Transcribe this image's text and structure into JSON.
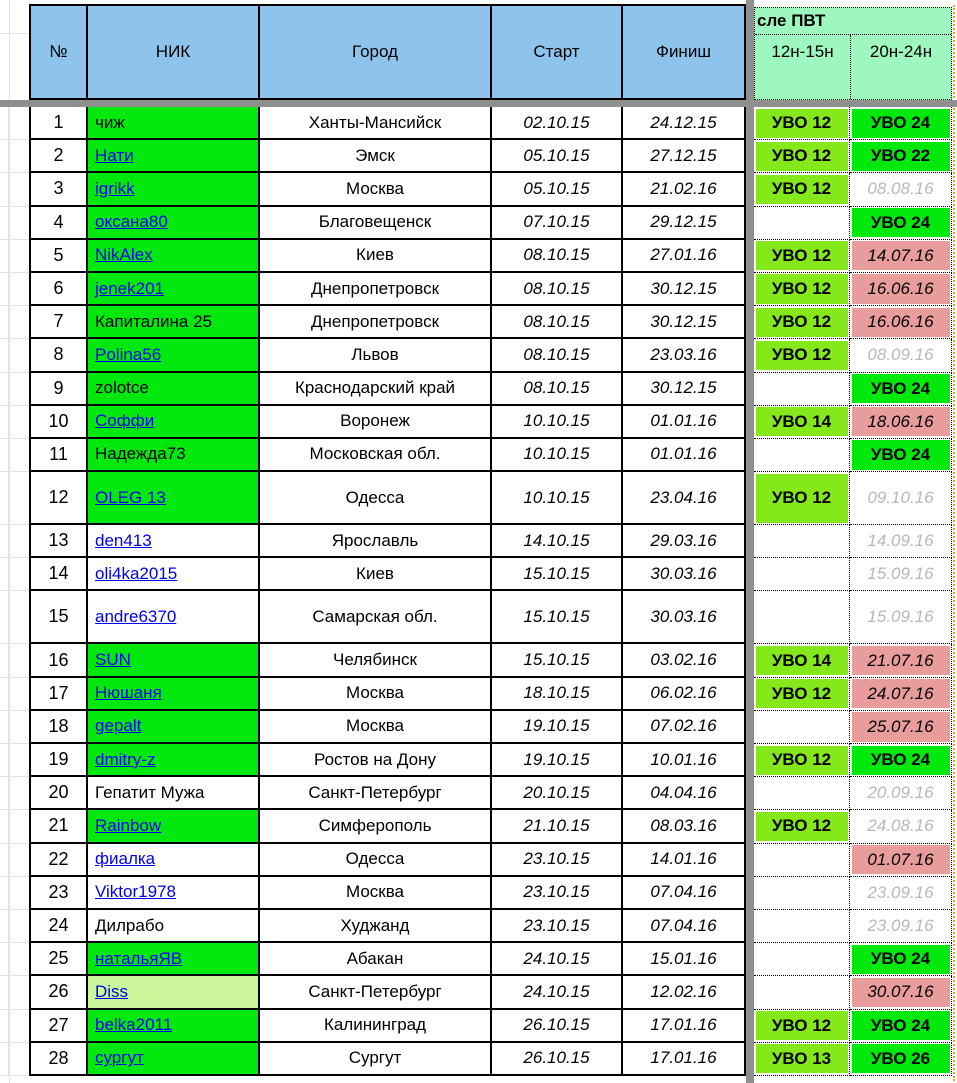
{
  "header": {
    "columns": [
      "№",
      "НИК",
      "Город",
      "Старт",
      "Финиш"
    ],
    "pvt_group_label": "сле ПВТ",
    "sub_columns": [
      "12н-15н",
      "20н-24н"
    ]
  },
  "colors": {
    "header_blue": "#8EC3EC",
    "group_mint": "#9DF7BE",
    "nick_green": "#00E80C",
    "uvo_green": "#00E80C",
    "uvo_yellow_green": "#85E81A",
    "nick_pale_green": "#CCF69B",
    "overdue_pink": "#E89C9C",
    "future_gray_text": "#B8B8B8",
    "link_blue": "#0000EE",
    "pane_divider_gray": "#8F8F8F",
    "print_area_edge_orange": "#DFA81E"
  },
  "rows": [
    {
      "num": "1",
      "nick": "чиж",
      "link": false,
      "nick_bg": "green",
      "city": "Ханты-Мансийск",
      "start": "02.10.15",
      "finish": "24.12.15",
      "col1": {
        "text": "УВО 12",
        "type": "uvo-yg"
      },
      "col2": {
        "text": "УВО 24",
        "type": "uvo-green"
      }
    },
    {
      "num": "2",
      "nick": "Нати",
      "link": true,
      "nick_bg": "green",
      "city": "Эмск",
      "start": "05.10.15",
      "finish": "27.12.15",
      "col1": {
        "text": "УВО 12",
        "type": "uvo-yg"
      },
      "col2": {
        "text": "УВО 22",
        "type": "uvo-green"
      }
    },
    {
      "num": "3",
      "nick": "igrikk",
      "link": true,
      "nick_bg": "green",
      "city": "Москва",
      "start": "05.10.15",
      "finish": "21.02.16",
      "col1": {
        "text": "УВО 12",
        "type": "uvo-yg"
      },
      "col2": {
        "text": "08.08.16",
        "type": "date-gray"
      }
    },
    {
      "num": "4",
      "nick": "оксана80",
      "link": true,
      "nick_bg": "green",
      "city": "Благовещенск",
      "start": "07.10.15",
      "finish": "29.12.15",
      "col1": {
        "text": "",
        "type": "empty"
      },
      "col2": {
        "text": "УВО 24",
        "type": "uvo-green"
      }
    },
    {
      "num": "5",
      "nick": "NikAlex",
      "link": true,
      "nick_bg": "green",
      "city": "Киев",
      "start": "08.10.15",
      "finish": "27.01.16",
      "col1": {
        "text": "УВО 12",
        "type": "uvo-yg"
      },
      "col2": {
        "text": "14.07.16",
        "type": "date-pink"
      }
    },
    {
      "num": "6",
      "nick": "jenek201",
      "link": true,
      "nick_bg": "green",
      "city": "Днепропетровск",
      "start": "08.10.15",
      "finish": "30.12.15",
      "col1": {
        "text": "УВО 12",
        "type": "uvo-yg"
      },
      "col2": {
        "text": "16.06.16",
        "type": "date-pink"
      }
    },
    {
      "num": "7",
      "nick": "Капиталина 25",
      "link": false,
      "nick_bg": "green",
      "city": "Днепропетровск",
      "start": "08.10.15",
      "finish": "30.12.15",
      "col1": {
        "text": "УВО 12",
        "type": "uvo-yg"
      },
      "col2": {
        "text": "16.06.16",
        "type": "date-pink"
      }
    },
    {
      "num": "8",
      "nick": "Polina56",
      "link": true,
      "nick_bg": "green",
      "city": "Львов",
      "start": "08.10.15",
      "finish": "23.03.16",
      "col1": {
        "text": "УВО 12",
        "type": "uvo-yg"
      },
      "col2": {
        "text": "08.09.16",
        "type": "date-gray"
      }
    },
    {
      "num": "9",
      "nick": "zolotce",
      "link": false,
      "nick_bg": "green",
      "city": "Краснодарский край",
      "start": "08.10.15",
      "finish": "30.12.15",
      "col1": {
        "text": "",
        "type": "empty"
      },
      "col2": {
        "text": "УВО 24",
        "type": "uvo-green"
      }
    },
    {
      "num": "10",
      "nick": "Соффи",
      "link": true,
      "nick_bg": "green",
      "city": "Воронеж",
      "start": "10.10.15",
      "finish": "01.01.16",
      "col1": {
        "text": "УВО 14",
        "type": "uvo-yg"
      },
      "col2": {
        "text": "18.06.16",
        "type": "date-pink"
      }
    },
    {
      "num": "11",
      "nick": "Надежда73",
      "link": false,
      "nick_bg": "green",
      "city": "Московская обл.",
      "start": "10.10.15",
      "finish": "01.01.16",
      "col1": {
        "text": "",
        "type": "empty"
      },
      "col2": {
        "text": "УВО 24",
        "type": "uvo-green"
      }
    },
    {
      "num": "12",
      "nick": "OLEG 13",
      "link": true,
      "nick_bg": "green",
      "city": "Одесса",
      "start": "10.10.15",
      "finish": "23.04.16",
      "col1": {
        "text": "УВО 12",
        "type": "uvo-yg"
      },
      "col2": {
        "text": "09.10.16",
        "type": "date-gray"
      },
      "tall": true
    },
    {
      "num": "13",
      "nick": "den413",
      "link": true,
      "nick_bg": "white",
      "city": "Ярославль",
      "start": "14.10.15",
      "finish": "29.03.16",
      "col1": {
        "text": "",
        "type": "empty"
      },
      "col2": {
        "text": "14.09.16",
        "type": "date-gray"
      }
    },
    {
      "num": "14",
      "nick": "oli4ka2015",
      "link": true,
      "nick_bg": "white",
      "city": "Киев",
      "start": "15.10.15",
      "finish": "30.03.16",
      "col1": {
        "text": "",
        "type": "empty"
      },
      "col2": {
        "text": "15.09.16",
        "type": "date-gray"
      }
    },
    {
      "num": "15",
      "nick": "andre6370",
      "link": true,
      "nick_bg": "white",
      "city": "Самарская обл.",
      "start": "15.10.15",
      "finish": "30.03.16",
      "col1": {
        "text": "",
        "type": "empty"
      },
      "col2": {
        "text": "15.09.16",
        "type": "date-gray"
      },
      "tall": true
    },
    {
      "num": "16",
      "nick": "SUN",
      "link": true,
      "nick_bg": "green",
      "city": "Челябинск",
      "start": "15.10.15",
      "finish": "03.02.16",
      "col1": {
        "text": "УВО 14",
        "type": "uvo-yg"
      },
      "col2": {
        "text": "21.07.16",
        "type": "date-pink"
      }
    },
    {
      "num": "17",
      "nick": "Нюшаня",
      "link": true,
      "nick_bg": "green",
      "city": "Москва",
      "start": "18.10.15",
      "finish": "06.02.16",
      "col1": {
        "text": "УВО 12",
        "type": "uvo-yg"
      },
      "col2": {
        "text": "24.07.16",
        "type": "date-pink"
      }
    },
    {
      "num": "18",
      "nick": "gepalt",
      "link": true,
      "nick_bg": "green",
      "city": "Москва",
      "start": "19.10.15",
      "finish": "07.02.16",
      "col1": {
        "text": "",
        "type": "empty"
      },
      "col2": {
        "text": "25.07.16",
        "type": "date-pink"
      }
    },
    {
      "num": "19",
      "nick": "dmitry-z",
      "link": true,
      "nick_bg": "green",
      "city": "Ростов на Дону",
      "start": "19.10.15",
      "finish": "10.01.16",
      "col1": {
        "text": "УВО 12",
        "type": "uvo-yg"
      },
      "col2": {
        "text": "УВО 24",
        "type": "uvo-green"
      }
    },
    {
      "num": "20",
      "nick": "Гепатит Мужа",
      "link": false,
      "nick_bg": "white",
      "city": "Санкт-Петербург",
      "start": "20.10.15",
      "finish": "04.04.16",
      "col1": {
        "text": "",
        "type": "empty"
      },
      "col2": {
        "text": "20.09.16",
        "type": "date-gray"
      }
    },
    {
      "num": "21",
      "nick": "Rainbow",
      "link": true,
      "nick_bg": "green",
      "city": "Симферополь",
      "start": "21.10.15",
      "finish": "08.03.16",
      "col1": {
        "text": "УВО 12",
        "type": "uvo-yg"
      },
      "col2": {
        "text": "24.08.16",
        "type": "date-gray"
      }
    },
    {
      "num": "22",
      "nick": "фиалка",
      "link": true,
      "nick_bg": "white",
      "city": "Одесса",
      "start": "23.10.15",
      "finish": "14.01.16",
      "col1": {
        "text": "",
        "type": "empty"
      },
      "col2": {
        "text": "01.07.16",
        "type": "date-pink"
      }
    },
    {
      "num": "23",
      "nick": "Viktor1978",
      "link": true,
      "nick_bg": "white",
      "city": "Москва",
      "start": "23.10.15",
      "finish": "07.04.16",
      "col1": {
        "text": "",
        "type": "empty"
      },
      "col2": {
        "text": "23.09.16",
        "type": "date-gray"
      }
    },
    {
      "num": "24",
      "nick": "Дилрабо",
      "link": false,
      "nick_bg": "white",
      "city": "Худжанд",
      "start": "23.10.15",
      "finish": "07.04.16",
      "col1": {
        "text": "",
        "type": "empty"
      },
      "col2": {
        "text": "23.09.16",
        "type": "date-gray"
      }
    },
    {
      "num": "25",
      "nick": "натальяЯВ",
      "link": true,
      "nick_bg": "green",
      "city": "Абакан",
      "start": "24.10.15",
      "finish": "15.01.16",
      "col1": {
        "text": "",
        "type": "empty"
      },
      "col2": {
        "text": "УВО 24",
        "type": "uvo-green"
      }
    },
    {
      "num": "26",
      "nick": "Diss",
      "link": true,
      "nick_bg": "pale",
      "city": "Санкт-Петербург",
      "start": "24.10.15",
      "finish": "12.02.16",
      "col1": {
        "text": "",
        "type": "empty"
      },
      "col2": {
        "text": "30.07.16",
        "type": "date-pink"
      }
    },
    {
      "num": "27",
      "nick": "belka2011",
      "link": true,
      "nick_bg": "green",
      "city": "Калининград",
      "start": "26.10.15",
      "finish": "17.01.16",
      "col1": {
        "text": "УВО 12",
        "type": "uvo-yg"
      },
      "col2": {
        "text": "УВО 24",
        "type": "uvo-green"
      }
    },
    {
      "num": "28",
      "nick": "сургут",
      "link": true,
      "nick_bg": "green",
      "city": "Сургут",
      "start": "26.10.15",
      "finish": "17.01.16",
      "col1": {
        "text": "УВО 13",
        "type": "uvo-yg"
      },
      "col2": {
        "text": "УВО 26",
        "type": "uvo-green"
      }
    }
  ]
}
